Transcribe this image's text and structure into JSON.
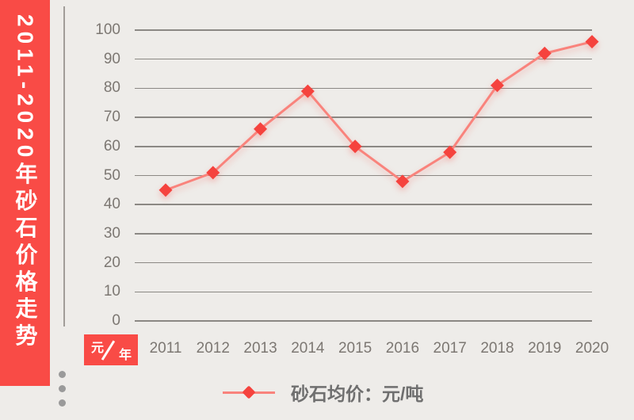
{
  "banner": {
    "title": "2011-2020年砂石价格走势"
  },
  "unit_badge": {
    "y_unit": "元",
    "x_unit": "年"
  },
  "legend": {
    "label": "砂石均价：元/吨"
  },
  "colors": {
    "accent_red": "#F94B46",
    "line": "#F9837C",
    "marker": "#F5433E",
    "grid": "#8B8884",
    "tick_text": "#7C7772",
    "background": "#EEECE9"
  },
  "chart_data": {
    "type": "line",
    "title": "2011-2020年砂石价格走势",
    "categories": [
      "2011",
      "2012",
      "2013",
      "2014",
      "2015",
      "2016",
      "2017",
      "2018",
      "2019",
      "2020"
    ],
    "series": [
      {
        "name": "砂石均价：元/吨",
        "values": [
          45,
          51,
          66,
          79,
          60,
          48,
          58,
          81,
          92,
          96
        ]
      }
    ],
    "xlabel": "年",
    "ylabel": "元",
    "ylim": [
      0,
      100
    ],
    "yticks": [
      0,
      10,
      20,
      30,
      40,
      50,
      60,
      70,
      80,
      90,
      100
    ],
    "grid": true,
    "legend_position": "bottom",
    "marker_shape": "diamond"
  }
}
